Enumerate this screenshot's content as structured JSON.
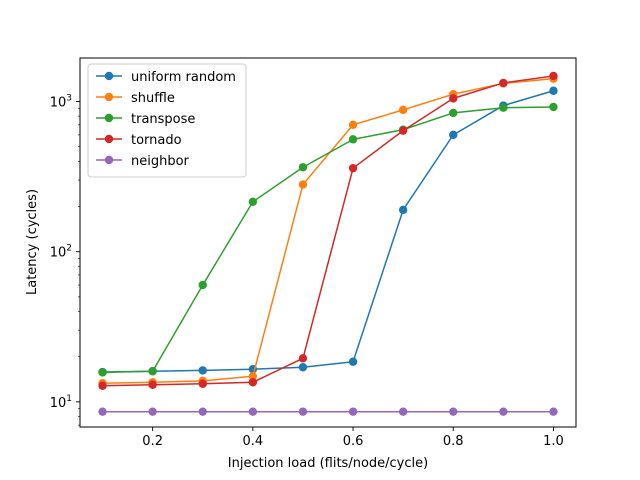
{
  "chart_data": {
    "type": "line",
    "title": "",
    "xlabel": "Injection load (flits/node/cycle)",
    "ylabel": "Latency (cycles)",
    "yscale": "log",
    "xlim": [
      0.055,
      1.045
    ],
    "ylim": [
      6.8,
      1950
    ],
    "x_ticks": [
      0.2,
      0.4,
      0.6,
      0.8,
      1.0
    ],
    "x_tick_labels": [
      "0.2",
      "0.4",
      "0.6",
      "0.8",
      "1.0"
    ],
    "y_ticks": [
      10,
      100,
      1000
    ],
    "y_tick_labels": [
      {
        "base": "10",
        "exp": "1"
      },
      {
        "base": "10",
        "exp": "2"
      },
      {
        "base": "10",
        "exp": "3"
      }
    ],
    "legend_position": "upper-left",
    "grid": false,
    "x": [
      0.1,
      0.2,
      0.3,
      0.4,
      0.5,
      0.6,
      0.7,
      0.8,
      0.9,
      1.0
    ],
    "series": [
      {
        "name": "uniform random",
        "color": "#1f77b4",
        "values": [
          15.8,
          16.0,
          16.2,
          16.5,
          17.0,
          18.5,
          190,
          600,
          940,
          1180
        ]
      },
      {
        "name": "shuffle",
        "color": "#ff7f0e",
        "values": [
          13.3,
          13.5,
          13.8,
          14.8,
          280,
          700,
          880,
          1120,
          1320,
          1420
        ]
      },
      {
        "name": "transpose",
        "color": "#2ca02c",
        "values": [
          15.7,
          16.0,
          60,
          215,
          365,
          560,
          650,
          840,
          910,
          920
        ]
      },
      {
        "name": "tornado",
        "color": "#d62728",
        "values": [
          12.8,
          13.0,
          13.2,
          13.5,
          19.5,
          360,
          640,
          1050,
          1330,
          1480
        ]
      },
      {
        "name": "neighbor",
        "color": "#9467bd",
        "values": [
          8.6,
          8.6,
          8.6,
          8.6,
          8.6,
          8.6,
          8.6,
          8.6,
          8.6,
          8.6
        ]
      }
    ]
  }
}
